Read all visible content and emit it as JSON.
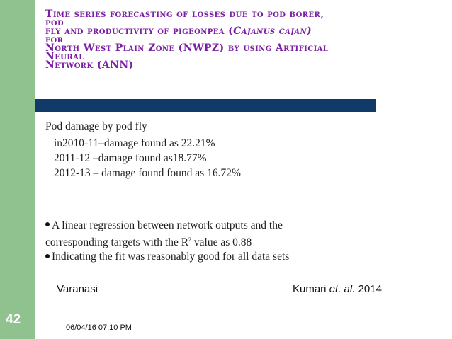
{
  "title": {
    "line1": "Time series forecasting of losses due to pod borer,",
    "line2": "pod",
    "line3a": "fly and productivity of pigeonpea (",
    "line3_italic": "Cajanus cajan)",
    "line4": "for",
    "line5": "North West Plain Zone (NWPZ) by using Artificial",
    "line6": "Neural",
    "line7": "Network (ANN)"
  },
  "content": {
    "heading": "Pod damage by pod fly",
    "items": [
      "in2010-11–damage found as  22.21%",
      "2011-12 –damage found as18.77%",
      "2012-13 – damage found found as 16.72%"
    ]
  },
  "bullets": {
    "b1_part1": "A linear regression between network outputs and the",
    "b1_part2": "corresponding targets with the R",
    "b1_sup": "2",
    "b1_part3": " value as 0.88",
    "b2": "Indicating the fit was reasonably good for all data sets"
  },
  "footer": {
    "left": "Varanasi",
    "right_author": "Kumari ",
    "right_etal": "et. al.",
    "right_year": " 2014"
  },
  "slide": {
    "number": "42",
    "datetime": "06/04/16 07:10 PM"
  },
  "colors": {
    "title": "#7b1fa2",
    "accent_bar": "#103a67",
    "left_bar": "#8fc28f"
  }
}
